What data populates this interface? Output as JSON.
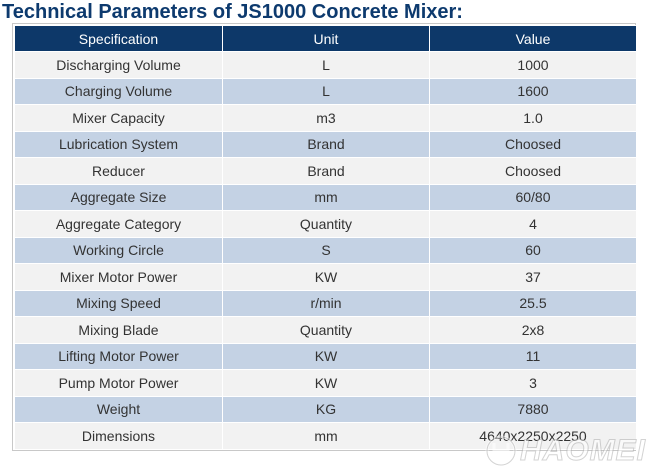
{
  "title": "Technical Parameters of JS1000 Concrete Mixer:",
  "table": {
    "headers": [
      "Specification",
      "Unit",
      "Value"
    ],
    "rows": [
      [
        "Discharging Volume",
        "L",
        "1000"
      ],
      [
        "Charging Volume",
        "L",
        "1600"
      ],
      [
        "Mixer Capacity",
        "m3",
        "1.0"
      ],
      [
        "Lubrication System",
        "Brand",
        "Choosed"
      ],
      [
        "Reducer",
        "Brand",
        "Choosed"
      ],
      [
        "Aggregate Size",
        "mm",
        "60/80"
      ],
      [
        "Aggregate Category",
        "Quantity",
        "4"
      ],
      [
        "Working Circle",
        "S",
        "60"
      ],
      [
        "Mixer Motor Power",
        "KW",
        "37"
      ],
      [
        "Mixing Speed",
        "r/min",
        "25.5"
      ],
      [
        "Mixing Blade",
        "Quantity",
        "2x8"
      ],
      [
        "Lifting Motor Power",
        "KW",
        "11"
      ],
      [
        "Pump Motor Power",
        "KW",
        "3"
      ],
      [
        "Weight",
        "KG",
        "7880"
      ],
      [
        "Dimensions",
        "mm",
        "4640x2250x2250"
      ]
    ]
  },
  "watermark": {
    "text": "HAOMEI",
    "icon": "haomei-logo-icon"
  }
}
